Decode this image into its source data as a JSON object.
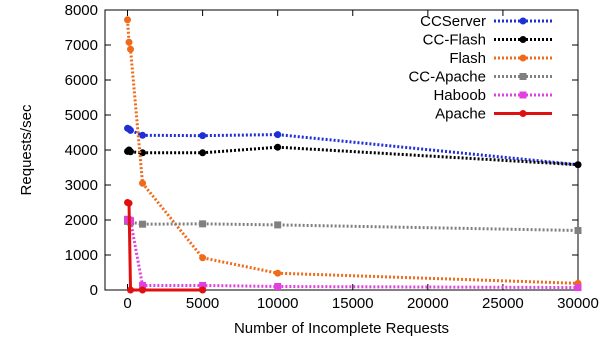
{
  "chart_data": {
    "type": "line",
    "title": "",
    "xlabel": "Number of Incomplete Requests",
    "ylabel": "Requests/sec",
    "xlim": [
      -1500,
      30000
    ],
    "ylim": [
      0,
      8000
    ],
    "xticks": [
      0,
      5000,
      10000,
      15000,
      20000,
      25000,
      30000
    ],
    "yticks": [
      0,
      1000,
      2000,
      3000,
      4000,
      5000,
      6000,
      7000,
      8000
    ],
    "grid": false,
    "legend_position": "top-right",
    "series": [
      {
        "name": "CCServer",
        "color": "#1f2fd6",
        "style": "dotted",
        "marker": "circle",
        "points": [
          [
            0,
            4620
          ],
          [
            100,
            4600
          ],
          [
            200,
            4560
          ],
          [
            1000,
            4420
          ],
          [
            5000,
            4410
          ],
          [
            10000,
            4440
          ],
          [
            30000,
            3580
          ]
        ]
      },
      {
        "name": "CC-Flash",
        "color": "#000000",
        "style": "dotted",
        "marker": "circle",
        "points": [
          [
            0,
            3960
          ],
          [
            100,
            4000
          ],
          [
            200,
            3950
          ],
          [
            1000,
            3920
          ],
          [
            5000,
            3920
          ],
          [
            10000,
            4080
          ],
          [
            30000,
            3580
          ]
        ]
      },
      {
        "name": "Flash",
        "color": "#f06a1a",
        "style": "dotted",
        "marker": "circle",
        "points": [
          [
            0,
            7720
          ],
          [
            100,
            7080
          ],
          [
            200,
            6880
          ],
          [
            1000,
            3050
          ],
          [
            5000,
            920
          ],
          [
            10000,
            480
          ],
          [
            30000,
            190
          ]
        ]
      },
      {
        "name": "CC-Apache",
        "color": "#808080",
        "style": "dotted",
        "marker": "square",
        "points": [
          [
            0,
            1960
          ],
          [
            100,
            1980
          ],
          [
            200,
            1940
          ],
          [
            1000,
            1880
          ],
          [
            5000,
            1890
          ],
          [
            10000,
            1860
          ],
          [
            30000,
            1700
          ]
        ]
      },
      {
        "name": "Haboob",
        "color": "#e040e0",
        "style": "dotted",
        "marker": "square",
        "points": [
          [
            0,
            2020
          ],
          [
            100,
            2000
          ],
          [
            200,
            1980
          ],
          [
            1000,
            130
          ],
          [
            5000,
            130
          ],
          [
            10000,
            100
          ],
          [
            30000,
            70
          ]
        ]
      },
      {
        "name": "Apache",
        "color": "#e01010",
        "style": "solid",
        "marker": "circle",
        "points": [
          [
            0,
            2500
          ],
          [
            100,
            2480
          ],
          [
            200,
            0
          ],
          [
            1000,
            0
          ],
          [
            5000,
            0
          ]
        ]
      }
    ]
  }
}
